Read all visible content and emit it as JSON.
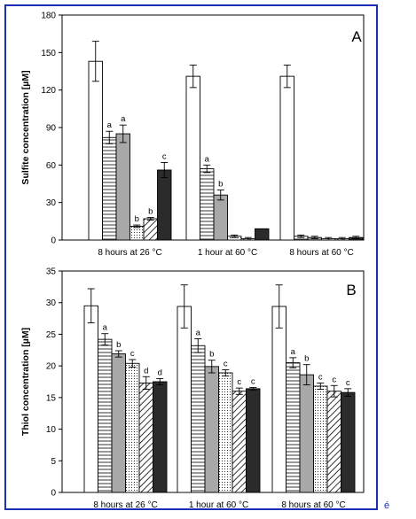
{
  "colors": {
    "frame": "#1a2fb5",
    "bar_outline": "#000000",
    "gray": "#a8a8a8",
    "black": "#2b2b2b"
  },
  "chart_data": [
    {
      "type": "bar",
      "panel_label": "A",
      "ylabel": "Sulfite concentration [µM]",
      "ylim": [
        0,
        180
      ],
      "yticks": [
        0,
        30,
        60,
        90,
        120,
        150,
        180
      ],
      "categories": [
        "8 hours at 26 °C",
        "1 hour at 60 °C",
        "8 hours at 60 °C"
      ],
      "series": [
        {
          "pattern": "white",
          "values": [
            143,
            131,
            131
          ],
          "errors": [
            16,
            9,
            9
          ],
          "letters": [
            "",
            "",
            ""
          ]
        },
        {
          "pattern": "hlines",
          "values": [
            82,
            57,
            3
          ],
          "errors": [
            5,
            3,
            1
          ],
          "letters": [
            "a",
            "a",
            ""
          ]
        },
        {
          "pattern": "gray",
          "values": [
            85,
            36,
            2
          ],
          "errors": [
            7,
            4,
            1
          ],
          "letters": [
            "a",
            "b",
            ""
          ]
        },
        {
          "pattern": "dots",
          "values": [
            11,
            3,
            1
          ],
          "errors": [
            1,
            1,
            1
          ],
          "letters": [
            "b",
            "",
            ""
          ]
        },
        {
          "pattern": "diagonal",
          "values": [
            17,
            1,
            1
          ],
          "errors": [
            1,
            1,
            1
          ],
          "letters": [
            "b",
            "",
            ""
          ]
        },
        {
          "pattern": "black",
          "values": [
            56,
            9,
            2
          ],
          "errors": [
            6,
            0,
            1
          ],
          "letters": [
            "c",
            "",
            ""
          ]
        }
      ]
    },
    {
      "type": "bar",
      "panel_label": "B",
      "ylabel": "Thiol concentration [µM]",
      "ylim": [
        0,
        35
      ],
      "yticks": [
        0,
        5,
        10,
        15,
        20,
        25,
        30,
        35
      ],
      "categories": [
        "8 hours at 26 °C",
        "1 hour at 60 °C",
        "8 hours at 60 °C"
      ],
      "series": [
        {
          "pattern": "white",
          "values": [
            29.5,
            29.4,
            29.4
          ],
          "errors": [
            2.7,
            3.4,
            3.4
          ],
          "letters": [
            "",
            "",
            ""
          ]
        },
        {
          "pattern": "hlines",
          "values": [
            24.2,
            23.2,
            20.5
          ],
          "errors": [
            0.9,
            1.1,
            0.8
          ],
          "letters": [
            "a",
            "a",
            "a"
          ]
        },
        {
          "pattern": "gray",
          "values": [
            21.9,
            19.9,
            18.6
          ],
          "errors": [
            0.5,
            1.0,
            1.6
          ],
          "letters": [
            "b",
            "b",
            "b"
          ]
        },
        {
          "pattern": "dots",
          "values": [
            20.4,
            18.9,
            16.8
          ],
          "errors": [
            0.6,
            0.5,
            0.5
          ],
          "letters": [
            "c",
            "c",
            "c"
          ]
        },
        {
          "pattern": "diagonal",
          "values": [
            17.3,
            16.0,
            16.0
          ],
          "errors": [
            1.0,
            0.5,
            0.9
          ],
          "letters": [
            "d",
            "c",
            "c"
          ]
        },
        {
          "pattern": "black",
          "values": [
            17.5,
            16.4,
            15.8
          ],
          "errors": [
            0.5,
            0.2,
            0.6
          ],
          "letters": [
            "d",
            "c",
            "c"
          ]
        }
      ]
    }
  ],
  "corner_mark": "é"
}
